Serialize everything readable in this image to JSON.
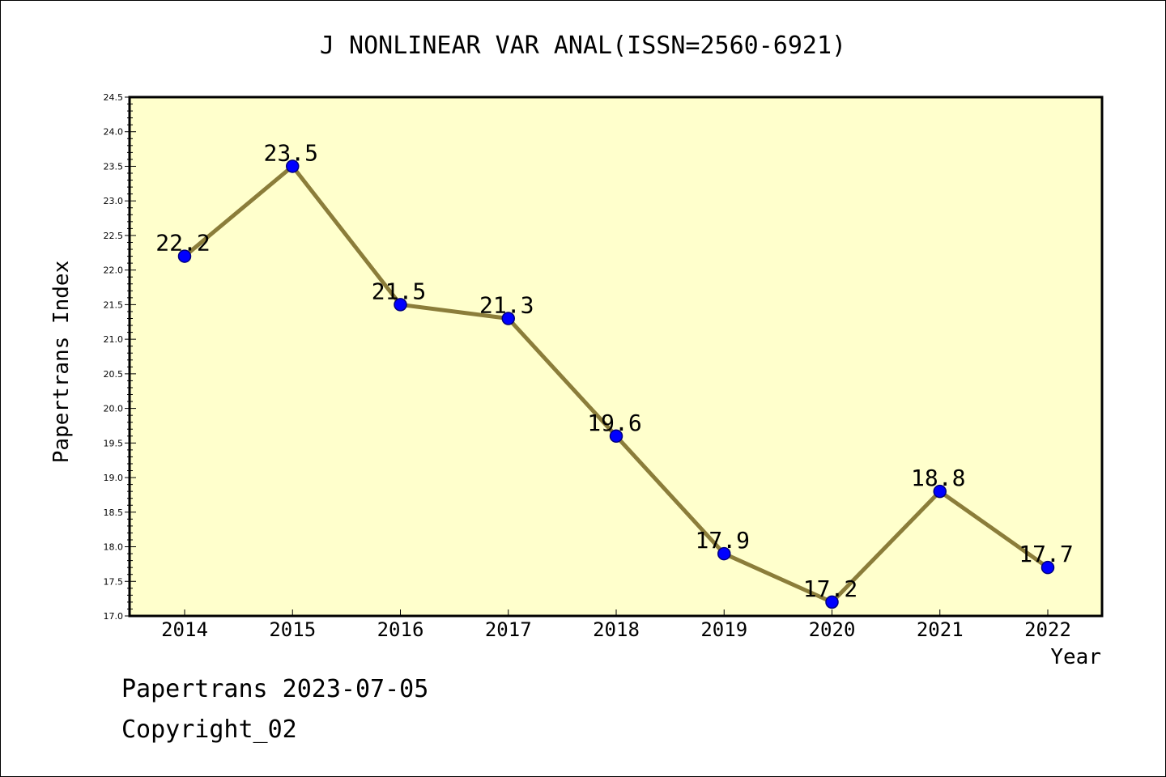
{
  "chart_data": {
    "type": "line",
    "title": "J NONLINEAR VAR ANAL(ISSN=2560-6921)",
    "xlabel": "Year",
    "ylabel": "Papertrans Index",
    "categories": [
      "2014",
      "2015",
      "2016",
      "2017",
      "2018",
      "2019",
      "2020",
      "2021",
      "2022"
    ],
    "series": [
      {
        "values": [
          22.2,
          23.5,
          21.5,
          21.3,
          19.6,
          17.9,
          17.2,
          18.8,
          17.7
        ],
        "data_labels": [
          "22.2",
          "23.5",
          "21.5",
          "21.3",
          "19.6",
          "17.9",
          "17.2",
          "18.8",
          "17.7"
        ]
      }
    ],
    "ylim": [
      17.0,
      24.5
    ],
    "y_ticks": [
      "17.0",
      "17.5",
      "18.0",
      "18.5",
      "19.0",
      "19.5",
      "20.0",
      "20.5",
      "21.0",
      "21.5",
      "22.0",
      "22.5",
      "23.0",
      "23.5",
      "24.0",
      "24.5"
    ],
    "grid": false,
    "legend": "none",
    "colors": {
      "plot_background": "#ffffcc",
      "line": "#8b7d3a",
      "marker_fill": "#0000ff",
      "marker_edge": "#000080"
    }
  },
  "footer": {
    "line1": "Papertrans 2023-07-05",
    "line2": "Copyright_02"
  }
}
